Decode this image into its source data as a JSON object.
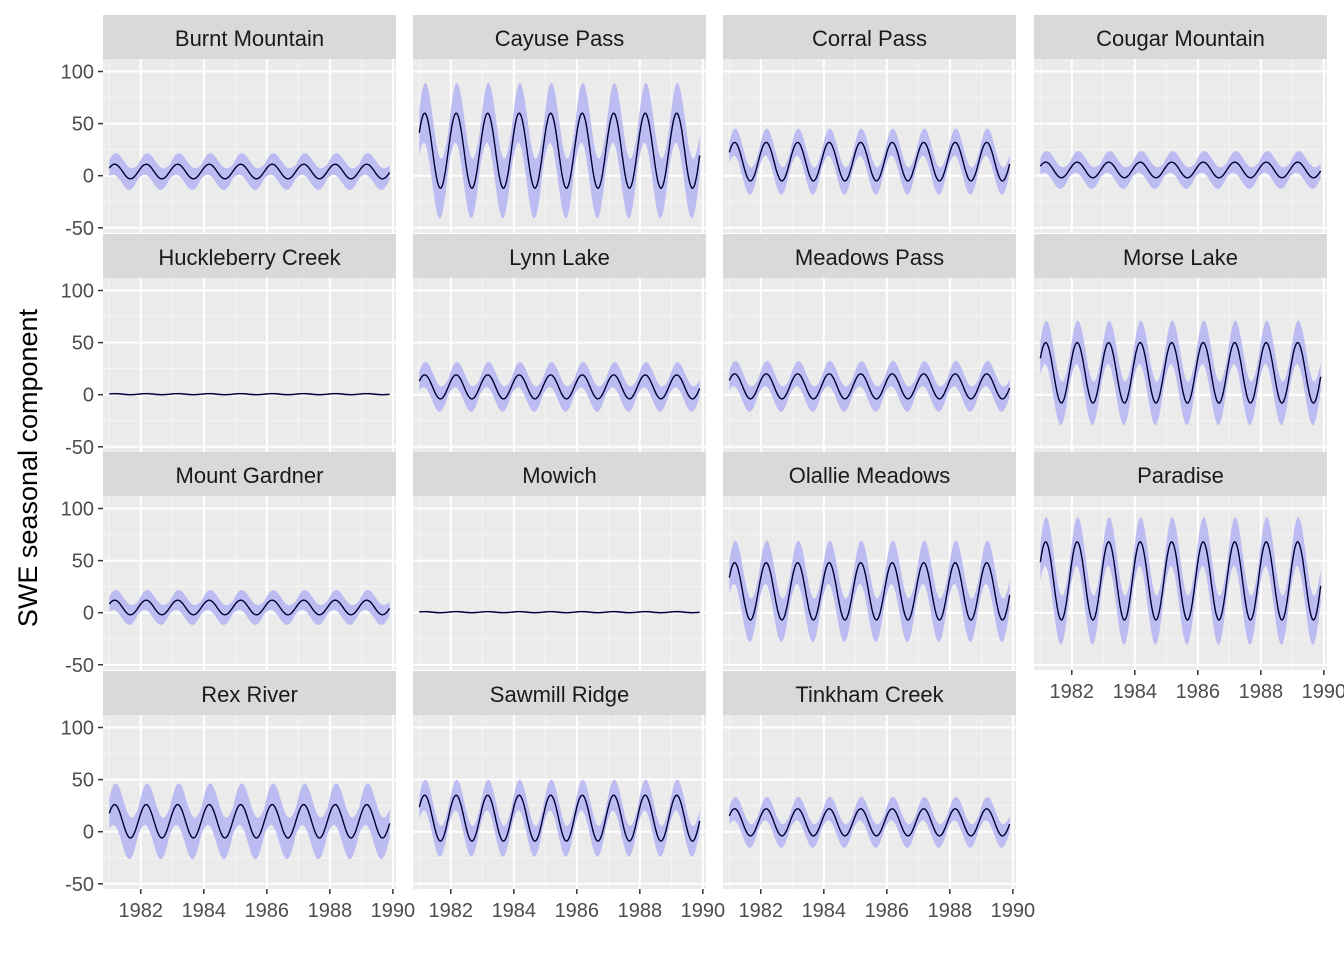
{
  "chart_data": {
    "type": "line",
    "facet_layout": "wrap",
    "facet_columns": 4,
    "xlabel": "",
    "ylabel": "SWE seasonal component",
    "xlim": [
      1980.8,
      1990.1
    ],
    "ylim": [
      -55,
      112
    ],
    "x_ticks": [
      1982,
      1984,
      1986,
      1988,
      1990
    ],
    "y_ticks": [
      -50,
      0,
      50,
      100
    ],
    "x_range_data": [
      1981.0,
      1989.9
    ],
    "period_years": 1,
    "grid": true,
    "legend": "none",
    "colors": {
      "ribbon": "#b9b9f2",
      "line": "#000033",
      "panel_bg": "#ebebeb",
      "strip_bg": "#d9d9d9",
      "grid_major": "#ffffff"
    },
    "panels": [
      {
        "name": "Burnt Mountain",
        "peak": 11,
        "trough": -3,
        "ribbon_half_width": 12
      },
      {
        "name": "Cayuse Pass",
        "peak": 60,
        "trough": -12,
        "ribbon_half_width": 33
      },
      {
        "name": "Corral Pass",
        "peak": 32,
        "trough": -5,
        "ribbon_half_width": 15
      },
      {
        "name": "Cougar Mountain",
        "peak": 13,
        "trough": -2,
        "ribbon_half_width": 12
      },
      {
        "name": "Huckleberry Creek",
        "peak": 1,
        "trough": 0,
        "ribbon_half_width": 1
      },
      {
        "name": "Lynn Lake",
        "peak": 19,
        "trough": -4,
        "ribbon_half_width": 14
      },
      {
        "name": "Meadows Pass",
        "peak": 20,
        "trough": -4,
        "ribbon_half_width": 14
      },
      {
        "name": "Morse Lake",
        "peak": 50,
        "trough": -8,
        "ribbon_half_width": 24
      },
      {
        "name": "Mount Gardner",
        "peak": 12,
        "trough": -2,
        "ribbon_half_width": 11
      },
      {
        "name": "Mowich",
        "peak": 1,
        "trough": 0,
        "ribbon_half_width": 1
      },
      {
        "name": "Olallie Meadows",
        "peak": 48,
        "trough": -7,
        "ribbon_half_width": 24
      },
      {
        "name": "Paradise",
        "peak": 68,
        "trough": -7,
        "ribbon_half_width": 27
      },
      {
        "name": "Rex River",
        "peak": 26,
        "trough": -6,
        "ribbon_half_width": 23
      },
      {
        "name": "Sawmill Ridge",
        "peak": 35,
        "trough": -9,
        "ribbon_half_width": 17
      },
      {
        "name": "Tinkham Creek",
        "peak": 22,
        "trough": -4,
        "ribbon_half_width": 13
      }
    ]
  }
}
